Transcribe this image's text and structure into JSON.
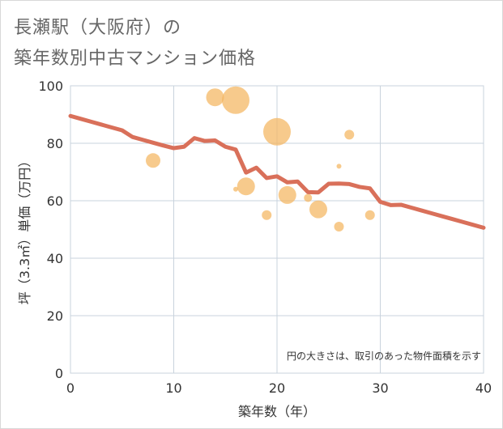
{
  "title_line1": "長瀬駅（大阪府）の",
  "title_line2": "築年数別中古マンション価格",
  "chart_data": {
    "type": "scatter",
    "xlabel": "築年数（年）",
    "ylabel": "坪（3.3㎡）単価（万円）",
    "xlim": [
      0,
      40
    ],
    "ylim": [
      0,
      100
    ],
    "xticks": [
      0,
      10,
      20,
      30,
      40
    ],
    "yticks": [
      0,
      20,
      40,
      60,
      80,
      100
    ],
    "grid": true,
    "note": "円の大きさは、取引のあった物件面積を示す",
    "colors": {
      "line": "#d9705a",
      "bubble": "#f4b660",
      "grid": "#c9d3dd",
      "plot_bg": "#ffffff"
    },
    "series": [
      {
        "type": "line",
        "x": [
          0,
          1,
          2,
          3,
          4,
          5,
          6,
          7,
          8,
          9,
          10,
          11,
          12,
          13,
          14,
          15,
          16,
          17,
          18,
          19,
          20,
          21,
          22,
          23,
          24,
          25,
          26,
          27,
          28,
          29,
          30,
          31,
          32,
          33,
          34,
          35,
          36,
          37,
          38,
          39,
          40
        ],
        "y": [
          89.5,
          88.5,
          87.5,
          86.5,
          85.5,
          84.5,
          82.2,
          81.2,
          80.2,
          79.2,
          78.3,
          78.8,
          81.8,
          80.8,
          81.0,
          78.8,
          77.8,
          69.8,
          71.5,
          67.9,
          68.5,
          66.4,
          66.7,
          63.0,
          62.9,
          65.9,
          66.0,
          65.8,
          64.8,
          64.3,
          59.6,
          58.5,
          58.6,
          57.6,
          56.6,
          55.6,
          54.6,
          53.6,
          52.6,
          51.6,
          50.6
        ]
      },
      {
        "type": "bubble",
        "points": [
          {
            "x": 8,
            "y": 74,
            "r": 9
          },
          {
            "x": 14,
            "y": 96,
            "r": 11
          },
          {
            "x": 16,
            "y": 95,
            "r": 17
          },
          {
            "x": 16,
            "y": 64,
            "r": 3
          },
          {
            "x": 17,
            "y": 65,
            "r": 11
          },
          {
            "x": 19,
            "y": 55,
            "r": 6
          },
          {
            "x": 20,
            "y": 84,
            "r": 17
          },
          {
            "x": 21,
            "y": 62,
            "r": 11
          },
          {
            "x": 23,
            "y": 61,
            "r": 5
          },
          {
            "x": 24,
            "y": 57,
            "r": 11
          },
          {
            "x": 26,
            "y": 72,
            "r": 3
          },
          {
            "x": 26,
            "y": 51,
            "r": 6
          },
          {
            "x": 27,
            "y": 83,
            "r": 6
          },
          {
            "x": 29,
            "y": 55,
            "r": 6
          }
        ]
      }
    ]
  }
}
